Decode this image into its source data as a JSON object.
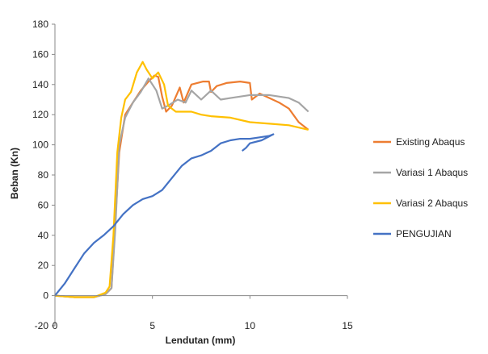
{
  "chart_data": {
    "type": "line",
    "title": "",
    "xlabel": "Lendutan (mm)",
    "ylabel": "Beban (Kn)",
    "xlim": [
      0,
      15
    ],
    "ylim": [
      -20,
      180
    ],
    "xticks": [
      0,
      5,
      10,
      15
    ],
    "yticks": [
      -20,
      0,
      20,
      40,
      60,
      80,
      100,
      120,
      140,
      160,
      180
    ],
    "grid": false,
    "legend_position": "right",
    "colors": {
      "Existing Abaqus": "#ED7D31",
      "Variasi 1 Abaqus": "#A5A5A5",
      "Variasi 2 Abaqus": "#FFC000",
      "PENGUJIAN": "#4472C4"
    },
    "series": [
      {
        "name": "Existing Abaqus",
        "points": [
          [
            0,
            0
          ],
          [
            1,
            -1
          ],
          [
            2,
            -1
          ],
          [
            2.6,
            1
          ],
          [
            2.9,
            5
          ],
          [
            3.1,
            50
          ],
          [
            3.3,
            95
          ],
          [
            3.6,
            120
          ],
          [
            4.0,
            128
          ],
          [
            4.4,
            136
          ],
          [
            4.8,
            142
          ],
          [
            5.1,
            146
          ],
          [
            5.3,
            145
          ],
          [
            5.5,
            132
          ],
          [
            5.7,
            122
          ],
          [
            6.0,
            126
          ],
          [
            6.4,
            138
          ],
          [
            6.6,
            128
          ],
          [
            7.0,
            140
          ],
          [
            7.6,
            142
          ],
          [
            7.9,
            142
          ],
          [
            8.0,
            135
          ],
          [
            8.3,
            139
          ],
          [
            8.8,
            141
          ],
          [
            9.5,
            142
          ],
          [
            10.0,
            141
          ],
          [
            10.1,
            130
          ],
          [
            10.5,
            134
          ],
          [
            11.0,
            131
          ],
          [
            11.5,
            128
          ],
          [
            12.0,
            124
          ],
          [
            12.5,
            115
          ],
          [
            13.0,
            110
          ]
        ]
      },
      {
        "name": "Variasi 1 Abaqus",
        "points": [
          [
            0,
            0
          ],
          [
            1,
            -1
          ],
          [
            2,
            -1
          ],
          [
            2.6,
            1
          ],
          [
            2.9,
            5
          ],
          [
            3.1,
            45
          ],
          [
            3.3,
            100
          ],
          [
            3.6,
            118
          ],
          [
            4.0,
            128
          ],
          [
            4.4,
            135
          ],
          [
            4.8,
            144
          ],
          [
            5.2,
            136
          ],
          [
            5.5,
            124
          ],
          [
            5.8,
            126
          ],
          [
            6.3,
            130
          ],
          [
            6.7,
            128
          ],
          [
            7.0,
            136
          ],
          [
            7.5,
            130
          ],
          [
            8.0,
            136
          ],
          [
            8.5,
            130
          ],
          [
            9.0,
            131
          ],
          [
            10.0,
            133
          ],
          [
            11.0,
            133
          ],
          [
            12.0,
            131
          ],
          [
            12.5,
            128
          ],
          [
            13.0,
            122
          ]
        ]
      },
      {
        "name": "Variasi 2 Abaqus",
        "points": [
          [
            0,
            0
          ],
          [
            1,
            -1
          ],
          [
            2,
            -1
          ],
          [
            2.6,
            2
          ],
          [
            2.8,
            6
          ],
          [
            3.0,
            40
          ],
          [
            3.2,
            95
          ],
          [
            3.4,
            118
          ],
          [
            3.6,
            130
          ],
          [
            3.9,
            135
          ],
          [
            4.2,
            148
          ],
          [
            4.5,
            155
          ],
          [
            4.7,
            150
          ],
          [
            5.0,
            144
          ],
          [
            5.3,
            148
          ],
          [
            5.6,
            140
          ],
          [
            5.8,
            126
          ],
          [
            6.2,
            122
          ],
          [
            7.0,
            122
          ],
          [
            7.5,
            120
          ],
          [
            8.0,
            119
          ],
          [
            9.0,
            118
          ],
          [
            10.0,
            115
          ],
          [
            11.0,
            114
          ],
          [
            12.0,
            113
          ],
          [
            13.0,
            110
          ]
        ]
      },
      {
        "name": "PENGUJIAN",
        "points": [
          [
            0,
            0
          ],
          [
            0.5,
            8
          ],
          [
            1.0,
            18
          ],
          [
            1.5,
            28
          ],
          [
            2.0,
            35
          ],
          [
            2.5,
            40
          ],
          [
            3.0,
            46
          ],
          [
            3.5,
            54
          ],
          [
            4.0,
            60
          ],
          [
            4.5,
            64
          ],
          [
            5.0,
            66
          ],
          [
            5.5,
            70
          ],
          [
            6.0,
            78
          ],
          [
            6.5,
            86
          ],
          [
            7.0,
            91
          ],
          [
            7.5,
            93
          ],
          [
            8.0,
            96
          ],
          [
            8.5,
            101
          ],
          [
            9.0,
            103
          ],
          [
            9.5,
            104
          ],
          [
            10.0,
            104
          ],
          [
            10.5,
            105
          ],
          [
            11.0,
            106
          ],
          [
            11.2,
            107
          ],
          [
            10.6,
            103
          ],
          [
            10.0,
            101
          ],
          [
            9.8,
            98
          ],
          [
            9.6,
            96
          ]
        ]
      }
    ]
  }
}
